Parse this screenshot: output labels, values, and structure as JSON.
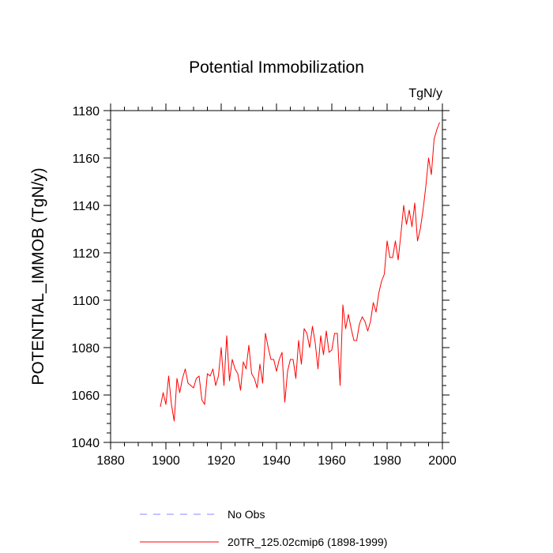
{
  "chart_data": {
    "type": "line",
    "title": "Potential Immobilization",
    "units": "TgN/y",
    "xlabel": "",
    "ylabel": "POTENTIAL_IMMOB  (TgN/y)",
    "xlim": [
      1880,
      2000
    ],
    "ylim": [
      1040,
      1180
    ],
    "xticks": [
      1880,
      1900,
      1920,
      1940,
      1960,
      1980,
      2000
    ],
    "yticks": [
      1040,
      1060,
      1080,
      1100,
      1120,
      1140,
      1160,
      1180
    ],
    "x_minor_step": 5,
    "y_minor_step": 4,
    "legend_position": "bottom",
    "series": [
      {
        "name": "No Obs",
        "color": "#8888ff",
        "style": "dashed",
        "x": [],
        "y": []
      },
      {
        "name": "20TR_125.02cmip6 (1898-1999)",
        "color": "#ff0000",
        "style": "solid",
        "x": [
          1898,
          1899,
          1900,
          1901,
          1902,
          1903,
          1904,
          1905,
          1906,
          1907,
          1908,
          1909,
          1910,
          1911,
          1912,
          1913,
          1914,
          1915,
          1916,
          1917,
          1918,
          1919,
          1920,
          1921,
          1922,
          1923,
          1924,
          1925,
          1926,
          1927,
          1928,
          1929,
          1930,
          1931,
          1932,
          1933,
          1934,
          1935,
          1936,
          1937,
          1938,
          1939,
          1940,
          1941,
          1942,
          1943,
          1944,
          1945,
          1946,
          1947,
          1948,
          1949,
          1950,
          1951,
          1952,
          1953,
          1954,
          1955,
          1956,
          1957,
          1958,
          1959,
          1960,
          1961,
          1962,
          1963,
          1964,
          1965,
          1966,
          1967,
          1968,
          1969,
          1970,
          1971,
          1972,
          1973,
          1974,
          1975,
          1976,
          1977,
          1978,
          1979,
          1980,
          1981,
          1982,
          1983,
          1984,
          1985,
          1986,
          1987,
          1988,
          1989,
          1990,
          1991,
          1992,
          1993,
          1994,
          1995,
          1996,
          1997,
          1998,
          1999
        ],
        "y": [
          1055,
          1061,
          1056,
          1068,
          1056,
          1049,
          1067,
          1061,
          1067,
          1071,
          1065,
          1064,
          1063,
          1067,
          1068,
          1058,
          1056,
          1069,
          1068,
          1071,
          1064,
          1068,
          1080,
          1064,
          1085,
          1066,
          1075,
          1071,
          1069,
          1062,
          1074,
          1071,
          1081,
          1069,
          1067,
          1063,
          1073,
          1065,
          1086,
          1080,
          1075,
          1075,
          1070,
          1075,
          1078,
          1057,
          1070,
          1075,
          1075,
          1067,
          1083,
          1073,
          1088,
          1086,
          1080,
          1089,
          1082,
          1071,
          1085,
          1077,
          1087,
          1078,
          1079,
          1086,
          1086,
          1064,
          1098,
          1088,
          1094,
          1088,
          1083,
          1083,
          1090,
          1093,
          1091,
          1087,
          1091,
          1099,
          1095,
          1103,
          1108,
          1111,
          1125,
          1118,
          1118,
          1125,
          1117,
          1128,
          1140,
          1132,
          1138,
          1131,
          1141,
          1125,
          1130,
          1138,
          1148,
          1160,
          1153,
          1168,
          1172,
          1175
        ]
      }
    ]
  }
}
